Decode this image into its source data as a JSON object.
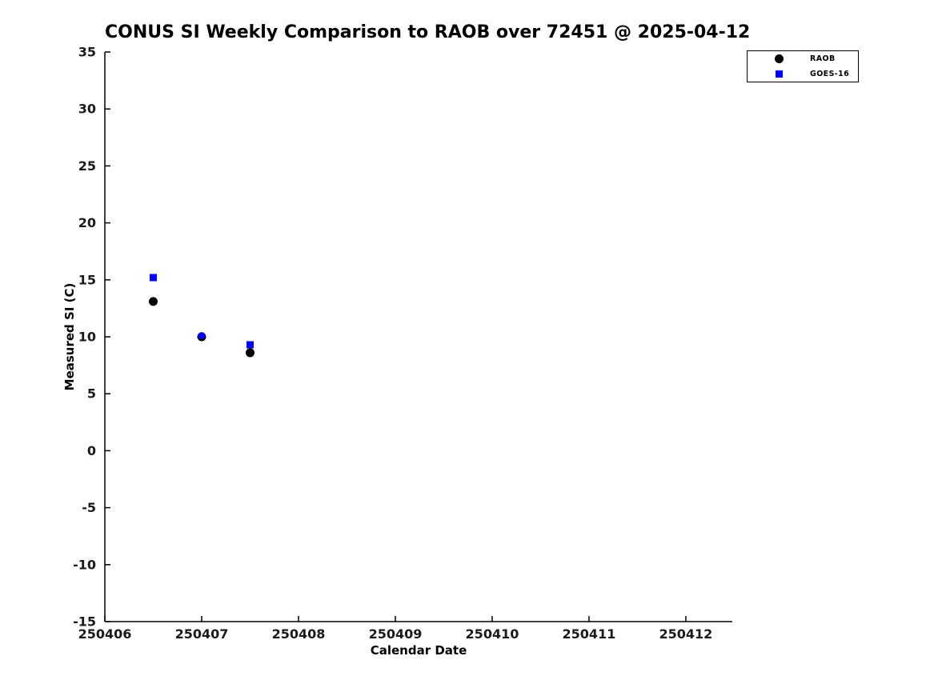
{
  "figure": {
    "background": "#ffffff"
  },
  "chart_data": {
    "type": "scatter",
    "title": "CONUS SI Weekly Comparison to RAOB over 72451 @ 2025-04-12",
    "xlabel": "Calendar Date",
    "ylabel": "Measured SI (C)",
    "xlim": [
      250406,
      250412.48
    ],
    "ylim": [
      -15,
      35
    ],
    "xticks": [
      250406,
      250407,
      250408,
      250409,
      250410,
      250411,
      250412
    ],
    "yticks": [
      -15,
      -10,
      -5,
      0,
      5,
      10,
      15,
      20,
      25,
      30,
      35
    ],
    "grid": false,
    "axis_color": "#000000",
    "legend": {
      "position": "top-right",
      "entries": [
        {
          "label": "RAOB",
          "marker": "circle",
          "color": "#000000"
        },
        {
          "label": "GOES-16",
          "marker": "square",
          "color": "#0000ff"
        }
      ]
    },
    "x": [
      250406.5,
      250407,
      250407.5
    ],
    "series": [
      {
        "name": "RAOB",
        "marker": "circle",
        "marker_size": 11,
        "color": "#000000",
        "values": [
          13.1,
          10.0,
          8.6
        ]
      },
      {
        "name": "GOES-16",
        "marker": "square",
        "marker_size": 9,
        "color": "#0000ff",
        "values": [
          15.2,
          10.1,
          9.3
        ],
        "point_markers": [
          "square",
          "circle",
          "square"
        ]
      }
    ]
  }
}
